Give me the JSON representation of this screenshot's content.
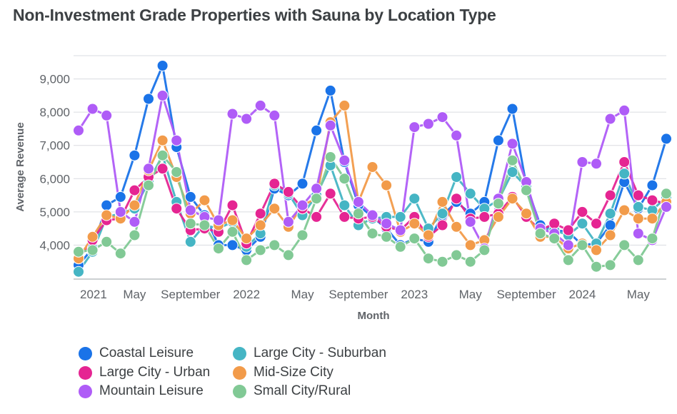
{
  "chart_data": {
    "type": "line",
    "title": "Non-Investment Grade Properties with Sauna by Location Type",
    "xlabel": "Month",
    "ylabel": "Average Revenue",
    "ylim": [
      3000,
      9700
    ],
    "yticks": [
      4000,
      5000,
      6000,
      7000,
      8000,
      9000
    ],
    "ytick_labels": [
      "4,000",
      "5,000",
      "6,000",
      "7,000",
      "8,000",
      "9,000"
    ],
    "xtick_labels": [
      {
        "index": 0,
        "label": "2021"
      },
      {
        "index": 4,
        "label": "May"
      },
      {
        "index": 8,
        "label": "September"
      },
      {
        "index": 12,
        "label": "2022"
      },
      {
        "index": 16,
        "label": "May"
      },
      {
        "index": 20,
        "label": "September"
      },
      {
        "index": 24,
        "label": "2023"
      },
      {
        "index": 28,
        "label": "May"
      },
      {
        "index": 32,
        "label": "September"
      },
      {
        "index": 36,
        "label": "2024"
      },
      {
        "index": 40,
        "label": "May"
      }
    ],
    "grid": "horizontal",
    "legend_position": "bottom",
    "series": [
      {
        "name": "Coastal Leisure",
        "color": "#1a73e8",
        "values": [
          3400,
          3900,
          5200,
          5450,
          6700,
          8400,
          9400,
          6950,
          5450,
          4900,
          4000,
          4000,
          3850,
          4250,
          5700,
          5500,
          5850,
          7450,
          8650,
          6500,
          5200,
          4850,
          4500,
          4000,
          4200,
          4100,
          4900,
          5300,
          4950,
          5300,
          7150,
          8100,
          5800,
          4600,
          4450,
          4400,
          4000,
          4050,
          4600,
          5900,
          5100,
          5800,
          7200
        ]
      },
      {
        "name": "Large City - Suburban",
        "color": "#45b5c4",
        "values": [
          3200,
          3800,
          4850,
          4950,
          5100,
          5900,
          6700,
          5300,
          4100,
          4600,
          4500,
          4700,
          3950,
          4350,
          5800,
          5550,
          4900,
          5500,
          6400,
          5200,
          4600,
          4800,
          4850,
          4850,
          5400,
          4500,
          4950,
          6050,
          5550,
          5100,
          5350,
          6200,
          5750,
          4500,
          4450,
          4300,
          4650,
          4050,
          4950,
          6150,
          5150,
          5050,
          5450
        ]
      },
      {
        "name": "Large City - Urban",
        "color": "#e52592",
        "values": [
          3600,
          4150,
          4750,
          4800,
          5650,
          6050,
          6300,
          5100,
          4450,
          4500,
          4400,
          5200,
          4050,
          4950,
          5850,
          5600,
          5100,
          4850,
          5550,
          4850,
          4800,
          4850,
          4550,
          4450,
          4850,
          4250,
          4600,
          5400,
          4800,
          4850,
          4950,
          5450,
          4850,
          4450,
          4650,
          4450,
          5000,
          4650,
          5500,
          6500,
          5500,
          5350,
          5250
        ]
      },
      {
        "name": "Mid-Size City",
        "color": "#f29b4a",
        "values": [
          3600,
          4250,
          4900,
          4800,
          5200,
          6250,
          7150,
          6050,
          4950,
          5350,
          4600,
          4750,
          4200,
          4600,
          5100,
          4550,
          5200,
          5400,
          7700,
          8200,
          5300,
          6350,
          5800,
          4400,
          4650,
          4300,
          5300,
          4550,
          4000,
          4150,
          4850,
          5400,
          4950,
          4250,
          4250,
          3900,
          4050,
          3850,
          4300,
          5050,
          4800,
          4800,
          5300
        ]
      },
      {
        "name": "Mountain Leisure",
        "color": "#af5cf7",
        "values": [
          7450,
          8100,
          7900,
          5000,
          4700,
          6300,
          8500,
          7150,
          5050,
          4850,
          4750,
          7950,
          7800,
          8200,
          7900,
          4700,
          5200,
          5700,
          7600,
          6550,
          5300,
          4900,
          4650,
          4450,
          7550,
          7650,
          7850,
          7300,
          4700,
          3900,
          5400,
          7050,
          5900,
          4500,
          4350,
          4000,
          6500,
          6450,
          7800,
          8050,
          4350,
          4150,
          5150
        ]
      },
      {
        "name": "Small City/Rural",
        "color": "#81c995",
        "values": [
          3800,
          3850,
          4100,
          3750,
          4300,
          5800,
          6700,
          6200,
          4650,
          4600,
          3900,
          4400,
          3550,
          3850,
          4000,
          3700,
          4300,
          5400,
          6650,
          6000,
          4950,
          4350,
          4250,
          3950,
          4200,
          3600,
          3500,
          3700,
          3500,
          3850,
          5250,
          6550,
          5650,
          4350,
          4200,
          3550,
          4000,
          3350,
          3400,
          4000,
          3550,
          4200,
          5550
        ]
      }
    ]
  }
}
